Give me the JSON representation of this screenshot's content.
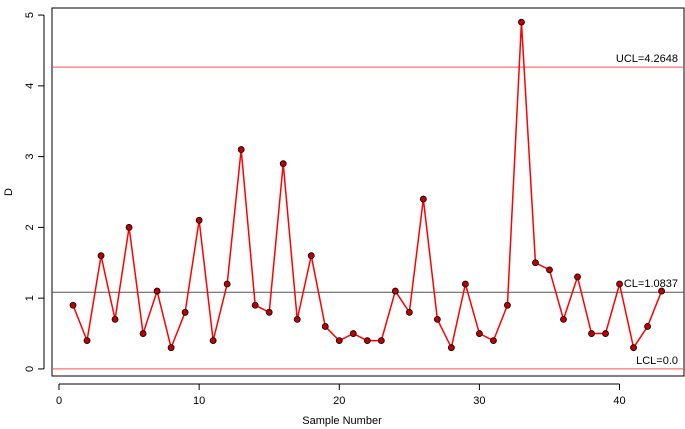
{
  "chart_data": {
    "type": "line",
    "x_label": "Sample Number",
    "y_label": "D",
    "x": [
      1,
      2,
      3,
      4,
      5,
      6,
      7,
      8,
      9,
      10,
      11,
      12,
      13,
      14,
      15,
      16,
      17,
      18,
      19,
      20,
      21,
      22,
      23,
      24,
      25,
      26,
      27,
      28,
      29,
      30,
      31,
      32,
      33,
      34,
      35,
      36,
      37,
      38,
      39,
      40,
      41,
      42,
      43
    ],
    "series": [
      {
        "color": "#ff0000",
        "marker_color": "#c00000",
        "values": [
          0.9,
          0.4,
          1.6,
          0.7,
          2.0,
          0.5,
          1.1,
          0.3,
          0.8,
          2.1,
          0.4,
          1.2,
          3.1,
          0.9,
          0.8,
          2.9,
          0.7,
          1.6,
          0.6,
          0.4,
          0.5,
          0.4,
          0.4,
          1.1,
          0.8,
          2.4,
          0.7,
          0.3,
          1.2,
          0.5,
          0.4,
          0.9,
          4.9,
          1.5,
          1.4,
          0.7,
          1.3,
          0.5,
          0.5,
          1.2,
          0.3,
          0.6,
          1.1
        ]
      }
    ],
    "control_lines": [
      {
        "label": "UCL=4.2648",
        "value": 4.2648,
        "color": "#ff4d4d"
      },
      {
        "label": "CL=1.0837",
        "value": 1.0837,
        "color": "#555555"
      },
      {
        "label": "LCL=0.0",
        "value": 0.0,
        "color": "#ff4d4d"
      }
    ],
    "xlim": [
      -0.5,
      44.6
    ],
    "ylim": [
      -0.1,
      5.1
    ],
    "xticks": [
      0,
      10,
      20,
      30,
      40
    ],
    "yticks": [
      0,
      1,
      2,
      3,
      4,
      5
    ]
  }
}
